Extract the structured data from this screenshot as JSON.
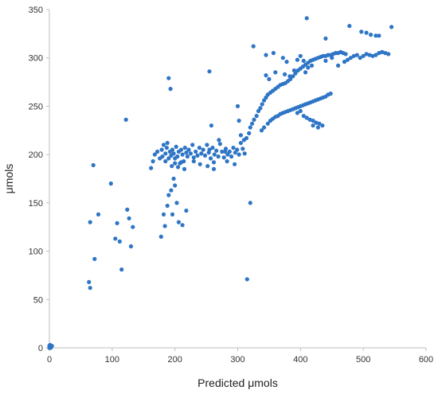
{
  "chart_data": {
    "type": "scatter",
    "title": "",
    "xlabel": "Predicted μmols",
    "ylabel": "μmols",
    "xlim": [
      0,
      600
    ],
    "ylim": [
      0,
      350
    ],
    "xticks": [
      "0",
      "100",
      "200",
      "300",
      "400",
      "500",
      "600"
    ],
    "yticks": [
      "0",
      "50",
      "100",
      "150",
      "200",
      "250",
      "300",
      "350"
    ],
    "grid": false,
    "legend": "none",
    "marker_color": "#2e75c6",
    "series": [
      {
        "points": [
          [
            0,
            0
          ],
          [
            1,
            1
          ],
          [
            2,
            2
          ],
          [
            1,
            3
          ],
          [
            3,
            1
          ],
          [
            2,
            0
          ],
          [
            4,
            2
          ],
          [
            0,
            2
          ],
          [
            63,
            68
          ],
          [
            65,
            62
          ],
          [
            65,
            130
          ],
          [
            70,
            189
          ],
          [
            72,
            92
          ],
          [
            78,
            138
          ],
          [
            98,
            170
          ],
          [
            105,
            113
          ],
          [
            108,
            129
          ],
          [
            115,
            81
          ],
          [
            112,
            110
          ],
          [
            122,
            236
          ],
          [
            124,
            143
          ],
          [
            127,
            134
          ],
          [
            130,
            105
          ],
          [
            133,
            125
          ],
          [
            162,
            186
          ],
          [
            165,
            193
          ],
          [
            168,
            200
          ],
          [
            172,
            203
          ],
          [
            176,
            196
          ],
          [
            179,
            205
          ],
          [
            180,
            198
          ],
          [
            182,
            210
          ],
          [
            185,
            201
          ],
          [
            187,
            207
          ],
          [
            188,
            212
          ],
          [
            190,
            196
          ],
          [
            192,
            203
          ],
          [
            194,
            199
          ],
          [
            196,
            205
          ],
          [
            198,
            201
          ],
          [
            200,
            196
          ],
          [
            202,
            208
          ],
          [
            204,
            198
          ],
          [
            206,
            203
          ],
          [
            208,
            191
          ],
          [
            210,
            205
          ],
          [
            212,
            200
          ],
          [
            214,
            193
          ],
          [
            216,
            207
          ],
          [
            218,
            202
          ],
          [
            220,
            198
          ],
          [
            222,
            205
          ],
          [
            225,
            201
          ],
          [
            228,
            210
          ],
          [
            230,
            197
          ],
          [
            233,
            203
          ],
          [
            236,
            199
          ],
          [
            239,
            207
          ],
          [
            242,
            201
          ],
          [
            245,
            205
          ],
          [
            248,
            199
          ],
          [
            251,
            210
          ],
          [
            254,
            202
          ],
          [
            257,
            196
          ],
          [
            260,
            207
          ],
          [
            263,
            200
          ],
          [
            266,
            204
          ],
          [
            269,
            198
          ],
          [
            272,
            211
          ],
          [
            275,
            203
          ],
          [
            278,
            197
          ],
          [
            281,
            206
          ],
          [
            284,
            200
          ],
          [
            287,
            203
          ],
          [
            290,
            198
          ],
          [
            293,
            207
          ],
          [
            296,
            202
          ],
          [
            299,
            205
          ],
          [
            302,
            200
          ],
          [
            305,
            212
          ],
          [
            308,
            206
          ],
          [
            311,
            201
          ],
          [
            185,
            193
          ],
          [
            195,
            188
          ],
          [
            200,
            191
          ],
          [
            205,
            187
          ],
          [
            210,
            192
          ],
          [
            215,
            185
          ],
          [
            230,
            193
          ],
          [
            240,
            190
          ],
          [
            252,
            188
          ],
          [
            262,
            192
          ],
          [
            283,
            193
          ],
          [
            295,
            190
          ],
          [
            178,
            115
          ],
          [
            182,
            138
          ],
          [
            184,
            126
          ],
          [
            188,
            147
          ],
          [
            190,
            158
          ],
          [
            194,
            163
          ],
          [
            196,
            138
          ],
          [
            198,
            175
          ],
          [
            200,
            168
          ],
          [
            203,
            150
          ],
          [
            206,
            130
          ],
          [
            212,
            127
          ],
          [
            218,
            142
          ],
          [
            190,
            279
          ],
          [
            193,
            268
          ],
          [
            255,
            286
          ],
          [
            262,
            185
          ],
          [
            258,
            230
          ],
          [
            300,
            250
          ],
          [
            302,
            235
          ],
          [
            305,
            220
          ],
          [
            310,
            215
          ],
          [
            314,
            217
          ],
          [
            318,
            222
          ],
          [
            320,
            228
          ],
          [
            323,
            232
          ],
          [
            326,
            236
          ],
          [
            330,
            240
          ],
          [
            333,
            245
          ],
          [
            336,
            248
          ],
          [
            339,
            252
          ],
          [
            342,
            256
          ],
          [
            345,
            259
          ],
          [
            348,
            262
          ],
          [
            352,
            264
          ],
          [
            356,
            266
          ],
          [
            360,
            268
          ],
          [
            364,
            270
          ],
          [
            368,
            272
          ],
          [
            372,
            273
          ],
          [
            376,
            274
          ],
          [
            380,
            276
          ],
          [
            384,
            278
          ],
          [
            388,
            281
          ],
          [
            392,
            284
          ],
          [
            396,
            287
          ],
          [
            400,
            289
          ],
          [
            404,
            291
          ],
          [
            408,
            293
          ],
          [
            412,
            295
          ],
          [
            416,
            297
          ],
          [
            420,
            298
          ],
          [
            424,
            299
          ],
          [
            428,
            300
          ],
          [
            432,
            301
          ],
          [
            436,
            302
          ],
          [
            440,
            302
          ],
          [
            444,
            303
          ],
          [
            448,
            303
          ],
          [
            452,
            304
          ],
          [
            456,
            305
          ],
          [
            460,
            305
          ],
          [
            464,
            306
          ],
          [
            468,
            305
          ],
          [
            472,
            304
          ],
          [
            338,
            225
          ],
          [
            342,
            228
          ],
          [
            348,
            232
          ],
          [
            352,
            235
          ],
          [
            356,
            237
          ],
          [
            360,
            239
          ],
          [
            364,
            240
          ],
          [
            368,
            242
          ],
          [
            372,
            243
          ],
          [
            376,
            244
          ],
          [
            380,
            245
          ],
          [
            384,
            246
          ],
          [
            388,
            247
          ],
          [
            392,
            248
          ],
          [
            396,
            249
          ],
          [
            400,
            250
          ],
          [
            404,
            251
          ],
          [
            408,
            252
          ],
          [
            412,
            253
          ],
          [
            416,
            254
          ],
          [
            420,
            255
          ],
          [
            424,
            256
          ],
          [
            428,
            257
          ],
          [
            432,
            258
          ],
          [
            436,
            259
          ],
          [
            440,
            260
          ],
          [
            444,
            262
          ],
          [
            448,
            263
          ],
          [
            395,
            243
          ],
          [
            400,
            245
          ],
          [
            405,
            240
          ],
          [
            410,
            238
          ],
          [
            415,
            236
          ],
          [
            420,
            235
          ],
          [
            425,
            233
          ],
          [
            430,
            232
          ],
          [
            435,
            230
          ],
          [
            420,
            230
          ],
          [
            428,
            228
          ],
          [
            440,
            297
          ],
          [
            450,
            300
          ],
          [
            460,
            292
          ],
          [
            470,
            296
          ],
          [
            475,
            298
          ],
          [
            480,
            300
          ],
          [
            485,
            302
          ],
          [
            490,
            303
          ],
          [
            495,
            300
          ],
          [
            500,
            302
          ],
          [
            505,
            304
          ],
          [
            510,
            303
          ],
          [
            515,
            302
          ],
          [
            520,
            303
          ],
          [
            525,
            305
          ],
          [
            530,
            306
          ],
          [
            535,
            305
          ],
          [
            540,
            304
          ],
          [
            395,
            298
          ],
          [
            400,
            302
          ],
          [
            405,
            297
          ],
          [
            408,
            285
          ],
          [
            412,
            290
          ],
          [
            418,
            292
          ],
          [
            325,
            312
          ],
          [
            345,
            303
          ],
          [
            357,
            305
          ],
          [
            372,
            300
          ],
          [
            378,
            296
          ],
          [
            410,
            341
          ],
          [
            440,
            320
          ],
          [
            478,
            333
          ],
          [
            497,
            327
          ],
          [
            505,
            326
          ],
          [
            512,
            324
          ],
          [
            520,
            323
          ],
          [
            525,
            323
          ],
          [
            545,
            332
          ],
          [
            320,
            150
          ],
          [
            315,
            71
          ],
          [
            280,
            203
          ],
          [
            270,
            215
          ],
          [
            255,
            205
          ],
          [
            345,
            282
          ],
          [
            350,
            278
          ],
          [
            360,
            285
          ],
          [
            375,
            283
          ],
          [
            383,
            281
          ],
          [
            390,
            287
          ]
        ]
      }
    ]
  }
}
